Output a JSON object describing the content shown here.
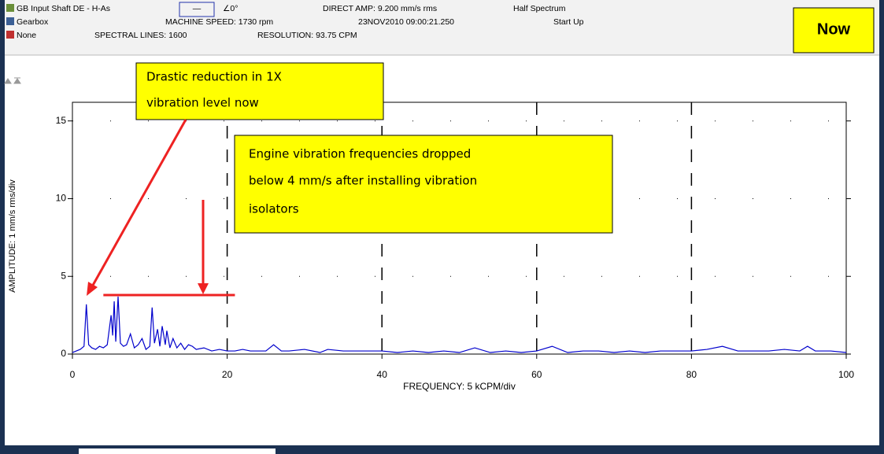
{
  "header": {
    "point": "GB Input Shaft DE - H-As",
    "trace": "—",
    "phase": "∠0°",
    "direct_amp": "DIRECT AMP: 9.200 mm/s rms",
    "spectrum": "Half Spectrum",
    "machine": "Gearbox",
    "speed": "MACHINE SPEED: 1730 rpm",
    "timestamp": "23NOV2010 09:00:21.250",
    "mode": "Start Up",
    "alarm": "None",
    "lines": "SPECTRAL LINES: 1600",
    "resolution": "RESOLUTION: 93.75 CPM",
    "now": "Now"
  },
  "chart_data": {
    "type": "line",
    "xlabel": "FREQUENCY: 5 kCPM/div",
    "ylabel": "AMPLITUDE: 1 mm/s rms/div",
    "xlim": [
      0,
      100
    ],
    "ylim": [
      0,
      16.2
    ],
    "xticks": [
      0,
      20,
      40,
      60,
      80,
      100
    ],
    "yticks": [
      0,
      5,
      10,
      15
    ],
    "grid": true,
    "color": "#0000cc",
    "x": [
      0,
      0.5,
      1,
      1.5,
      1.8,
      2.1,
      2.5,
      3,
      3.5,
      4,
      4.5,
      5,
      5.2,
      5.4,
      5.6,
      5.9,
      6.2,
      6.6,
      7,
      7.5,
      8,
      8.5,
      9,
      9.5,
      10,
      10.3,
      10.6,
      11,
      11.3,
      11.6,
      12,
      12.2,
      12.6,
      13,
      13.5,
      14,
      14.5,
      15,
      15.5,
      16,
      17,
      18,
      19,
      20,
      21,
      22,
      23,
      24,
      25,
      26,
      27,
      28,
      30,
      32,
      33,
      35,
      37,
      40,
      42,
      44,
      46,
      48,
      50,
      52,
      54,
      56,
      58,
      60,
      62,
      64,
      66,
      68,
      70,
      72,
      74,
      76,
      78,
      80,
      82,
      84,
      86,
      88,
      90,
      92,
      94,
      95,
      96,
      98,
      100
    ],
    "values": [
      0.1,
      0.2,
      0.3,
      0.5,
      3.2,
      0.6,
      0.4,
      0.3,
      0.5,
      0.4,
      0.6,
      2.5,
      1.2,
      3.4,
      0.8,
      3.7,
      0.7,
      0.5,
      0.6,
      1.3,
      0.4,
      0.6,
      1.0,
      0.3,
      0.5,
      3.0,
      0.7,
      1.6,
      0.5,
      1.8,
      0.6,
      1.5,
      0.4,
      1.0,
      0.4,
      0.7,
      0.3,
      0.6,
      0.5,
      0.3,
      0.4,
      0.2,
      0.3,
      0.2,
      0.2,
      0.3,
      0.2,
      0.2,
      0.2,
      0.6,
      0.2,
      0.2,
      0.3,
      0.1,
      0.3,
      0.2,
      0.2,
      0.2,
      0.1,
      0.2,
      0.1,
      0.2,
      0.1,
      0.4,
      0.1,
      0.2,
      0.1,
      0.2,
      0.5,
      0.1,
      0.2,
      0.2,
      0.1,
      0.2,
      0.1,
      0.2,
      0.2,
      0.2,
      0.3,
      0.5,
      0.2,
      0.2,
      0.2,
      0.3,
      0.2,
      0.5,
      0.2,
      0.2,
      0.1
    ],
    "threshold": {
      "value": 3.8,
      "x": [
        4,
        21
      ]
    },
    "annotations": [
      {
        "lines": [
          "Drastic reduction in 1X",
          "vibration level now"
        ]
      },
      {
        "lines": [
          "Engine vibration frequencies dropped",
          "below 4 mm/s after installing vibration",
          "isolators"
        ]
      }
    ]
  }
}
